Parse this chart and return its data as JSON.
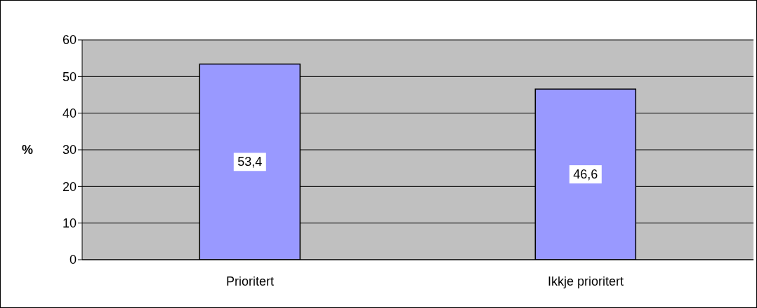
{
  "chart_data": {
    "type": "bar",
    "categories": [
      "Prioritert",
      "Ikkje prioritert"
    ],
    "values": [
      53.4,
      46.6
    ],
    "value_labels": [
      "53,4",
      "46,6"
    ],
    "color": "#9999ff",
    "ylabel": "%",
    "ylim": [
      0,
      60
    ],
    "yticks": [
      0,
      10,
      20,
      30,
      40,
      50,
      60
    ],
    "grid": "y"
  }
}
